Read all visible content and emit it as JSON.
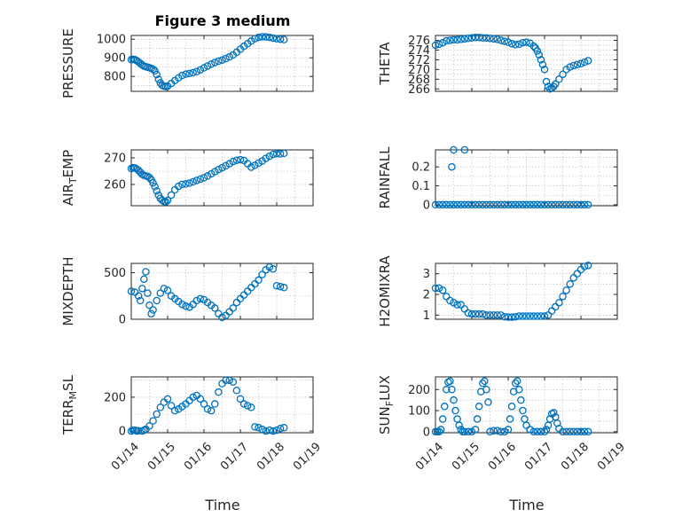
{
  "figure": {
    "title": "Figure 3 medium",
    "xlabel": "Time"
  },
  "colors": {
    "marker": "#0072BD",
    "axis": "#262626",
    "grid": "#b8b8b8"
  },
  "chart_data": [
    {
      "type": "scatter",
      "name": "pressure",
      "ylabel": "PRESSURE",
      "ylabel_sub": "",
      "ylabel_suffix": "",
      "xlim": [
        0,
        5
      ],
      "ylim": [
        720,
        1020
      ],
      "yticks": [
        800,
        900,
        1000
      ],
      "show_x_ticklabels": false,
      "grid": true,
      "x": [
        0.0,
        0.05,
        0.1,
        0.15,
        0.2,
        0.25,
        0.3,
        0.35,
        0.4,
        0.45,
        0.5,
        0.55,
        0.6,
        0.65,
        0.7,
        0.75,
        0.8,
        0.85,
        0.9,
        0.95,
        1.0,
        1.1,
        1.2,
        1.3,
        1.4,
        1.5,
        1.6,
        1.7,
        1.8,
        1.9,
        2.0,
        2.1,
        2.2,
        2.3,
        2.4,
        2.5,
        2.6,
        2.7,
        2.8,
        2.9,
        3.0,
        3.1,
        3.2,
        3.3,
        3.4,
        3.5,
        3.6,
        3.7,
        3.8,
        3.9,
        4.0,
        4.1,
        4.2
      ],
      "y": [
        890,
        892,
        890,
        885,
        878,
        870,
        862,
        855,
        852,
        850,
        847,
        843,
        838,
        830,
        810,
        785,
        765,
        752,
        748,
        745,
        748,
        762,
        778,
        792,
        805,
        812,
        816,
        820,
        826,
        835,
        846,
        856,
        866,
        875,
        882,
        888,
        896,
        905,
        915,
        930,
        946,
        962,
        976,
        990,
        1003,
        1010,
        1013,
        1012,
        1010,
        1006,
        1003,
        1000,
        998
      ]
    },
    {
      "type": "scatter",
      "name": "theta",
      "ylabel": "THETA",
      "ylabel_sub": "",
      "ylabel_suffix": "",
      "xlim": [
        0,
        5
      ],
      "ylim": [
        265.5,
        277
      ],
      "yticks": [
        266,
        268,
        270,
        272,
        274,
        276
      ],
      "show_x_ticklabels": false,
      "grid": true,
      "x": [
        0.0,
        0.1,
        0.2,
        0.3,
        0.4,
        0.5,
        0.6,
        0.7,
        0.8,
        0.9,
        1.0,
        1.1,
        1.2,
        1.3,
        1.4,
        1.5,
        1.6,
        1.7,
        1.8,
        1.9,
        2.0,
        2.1,
        2.2,
        2.3,
        2.4,
        2.5,
        2.6,
        2.7,
        2.75,
        2.8,
        2.85,
        2.9,
        2.95,
        3.0,
        3.05,
        3.1,
        3.15,
        3.2,
        3.25,
        3.3,
        3.4,
        3.5,
        3.6,
        3.7,
        3.8,
        3.9,
        4.0,
        4.1,
        4.2
      ],
      "y": [
        275.0,
        275.2,
        275.5,
        275.9,
        276.0,
        276.1,
        276.1,
        276.2,
        276.3,
        276.4,
        276.5,
        276.6,
        276.6,
        276.5,
        276.5,
        276.4,
        276.3,
        276.2,
        276.0,
        275.8,
        275.6,
        275.3,
        275.1,
        275.2,
        275.5,
        275.6,
        275.4,
        274.8,
        274.4,
        273.8,
        273.0,
        272.0,
        271.0,
        270.0,
        267.5,
        266.5,
        266.0,
        266.2,
        266.5,
        267.0,
        268.0,
        269.0,
        270.0,
        270.5,
        270.8,
        271.0,
        271.2,
        271.5,
        271.8
      ]
    },
    {
      "type": "scatter",
      "name": "air-temp",
      "ylabel": "AIR",
      "ylabel_sub": "T",
      "ylabel_suffix": "EMP",
      "xlim": [
        0,
        5
      ],
      "ylim": [
        252,
        273
      ],
      "yticks": [
        260,
        270
      ],
      "show_x_ticklabels": false,
      "grid": true,
      "x": [
        0.0,
        0.05,
        0.1,
        0.15,
        0.2,
        0.25,
        0.3,
        0.35,
        0.4,
        0.45,
        0.5,
        0.55,
        0.6,
        0.65,
        0.7,
        0.75,
        0.8,
        0.85,
        0.9,
        0.95,
        1.0,
        1.1,
        1.2,
        1.3,
        1.4,
        1.5,
        1.6,
        1.7,
        1.8,
        1.9,
        2.0,
        2.1,
        2.2,
        2.3,
        2.4,
        2.5,
        2.6,
        2.7,
        2.8,
        2.9,
        3.0,
        3.1,
        3.2,
        3.3,
        3.4,
        3.5,
        3.6,
        3.7,
        3.8,
        3.9,
        4.0,
        4.1,
        4.2
      ],
      "y": [
        266.0,
        266.3,
        266.2,
        265.8,
        265.3,
        264.6,
        263.8,
        263.4,
        263.2,
        263.0,
        262.6,
        261.8,
        260.6,
        259.2,
        257.6,
        256.0,
        254.8,
        254.0,
        253.6,
        253.5,
        254.0,
        256.0,
        258.0,
        259.3,
        260.0,
        260.2,
        260.5,
        261.0,
        261.5,
        262.0,
        262.5,
        263.2,
        264.0,
        264.8,
        265.6,
        266.3,
        267.0,
        267.8,
        268.6,
        269.1,
        269.3,
        269.0,
        267.8,
        266.5,
        267.2,
        268.0,
        268.8,
        269.8,
        270.6,
        271.3,
        271.6,
        271.5,
        271.7
      ]
    },
    {
      "type": "scatter",
      "name": "rainfall",
      "ylabel": "RAINFALL",
      "ylabel_sub": "",
      "ylabel_suffix": "",
      "xlim": [
        0,
        5
      ],
      "ylim": [
        -0.005,
        0.29
      ],
      "yticks": [
        0,
        0.1,
        0.2
      ],
      "show_x_ticklabels": false,
      "grid": true,
      "x": [
        0.0,
        0.1,
        0.2,
        0.3,
        0.4,
        0.5,
        0.6,
        0.7,
        0.8,
        0.9,
        1.0,
        1.1,
        1.2,
        1.3,
        1.4,
        1.5,
        1.6,
        1.7,
        1.8,
        1.9,
        2.0,
        2.1,
        2.2,
        2.3,
        2.4,
        2.5,
        2.6,
        2.7,
        2.8,
        2.9,
        3.0,
        3.1,
        3.2,
        3.3,
        3.4,
        3.5,
        3.6,
        3.7,
        3.8,
        3.9,
        4.0,
        4.1,
        4.2,
        0.45,
        0.5,
        0.8
      ],
      "y": [
        0,
        0,
        0,
        0,
        0,
        0,
        0,
        0,
        0,
        0,
        0,
        0,
        0,
        0,
        0,
        0,
        0,
        0,
        0,
        0,
        0,
        0,
        0,
        0,
        0,
        0,
        0,
        0,
        0,
        0,
        0,
        0,
        0,
        0,
        0,
        0,
        0,
        0,
        0,
        0,
        0,
        0,
        0,
        0.2,
        0.29,
        0.29
      ]
    },
    {
      "type": "scatter",
      "name": "mixdepth",
      "ylabel": "MIXDEPTH",
      "ylabel_sub": "",
      "ylabel_suffix": "",
      "xlim": [
        0,
        5
      ],
      "ylim": [
        0,
        600
      ],
      "yticks": [
        0,
        500
      ],
      "show_x_ticklabels": false,
      "grid": true,
      "x": [
        0.0,
        0.1,
        0.2,
        0.25,
        0.3,
        0.35,
        0.4,
        0.45,
        0.5,
        0.55,
        0.6,
        0.7,
        0.8,
        0.9,
        1.0,
        1.1,
        1.2,
        1.3,
        1.4,
        1.5,
        1.6,
        1.7,
        1.8,
        1.9,
        2.0,
        2.1,
        2.2,
        2.3,
        2.4,
        2.5,
        2.6,
        2.7,
        2.8,
        2.9,
        3.0,
        3.1,
        3.2,
        3.3,
        3.4,
        3.5,
        3.6,
        3.7,
        3.8,
        3.9,
        4.0,
        4.1,
        4.2
      ],
      "y": [
        300,
        290,
        250,
        200,
        330,
        430,
        510,
        280,
        150,
        60,
        100,
        200,
        280,
        330,
        310,
        250,
        220,
        190,
        160,
        140,
        130,
        160,
        200,
        220,
        210,
        180,
        150,
        120,
        60,
        20,
        40,
        80,
        120,
        180,
        220,
        260,
        300,
        340,
        380,
        420,
        480,
        530,
        560,
        540,
        360,
        350,
        340
      ]
    },
    {
      "type": "scatter",
      "name": "h2omixra",
      "ylabel": "H2OMIXRA",
      "ylabel_sub": "",
      "ylabel_suffix": "",
      "xlim": [
        0,
        5
      ],
      "ylim": [
        0.8,
        3.5
      ],
      "yticks": [
        1,
        2,
        3
      ],
      "show_x_ticklabels": false,
      "grid": true,
      "x": [
        0.0,
        0.1,
        0.2,
        0.3,
        0.4,
        0.5,
        0.6,
        0.7,
        0.8,
        0.9,
        1.0,
        1.1,
        1.2,
        1.3,
        1.4,
        1.5,
        1.6,
        1.7,
        1.8,
        1.9,
        2.0,
        2.1,
        2.2,
        2.3,
        2.4,
        2.5,
        2.6,
        2.7,
        2.8,
        2.9,
        3.0,
        3.1,
        3.2,
        3.3,
        3.4,
        3.5,
        3.6,
        3.7,
        3.8,
        3.9,
        4.0,
        4.1,
        4.2
      ],
      "y": [
        2.3,
        2.3,
        2.2,
        1.9,
        1.7,
        1.6,
        1.5,
        1.5,
        1.3,
        1.1,
        1.05,
        1.05,
        1.05,
        1.05,
        1.0,
        1.0,
        1.0,
        1.0,
        1.0,
        0.92,
        0.9,
        0.9,
        0.92,
        0.95,
        0.95,
        0.95,
        0.95,
        0.95,
        0.95,
        0.95,
        0.95,
        1.0,
        1.2,
        1.4,
        1.6,
        1.9,
        2.2,
        2.5,
        2.8,
        3.0,
        3.2,
        3.35,
        3.4
      ]
    },
    {
      "type": "scatter",
      "name": "terr-msl",
      "ylabel": "TERR",
      "ylabel_sub": "M",
      "ylabel_suffix": "SL",
      "xlim": [
        0,
        5
      ],
      "ylim": [
        -10,
        320
      ],
      "yticks": [
        0,
        200
      ],
      "show_x_ticklabels": true,
      "xticks": [
        0,
        1,
        2,
        3,
        4,
        5
      ],
      "xticklabels": [
        "01/14",
        "01/15",
        "01/16",
        "01/17",
        "01/18",
        "01/19"
      ],
      "grid": true,
      "x": [
        0.0,
        0.05,
        0.1,
        0.15,
        0.2,
        0.3,
        0.35,
        0.4,
        0.5,
        0.6,
        0.7,
        0.8,
        0.9,
        1.0,
        1.1,
        1.2,
        1.3,
        1.4,
        1.5,
        1.6,
        1.7,
        1.8,
        1.9,
        2.0,
        2.1,
        2.2,
        2.3,
        2.4,
        2.5,
        2.6,
        2.7,
        2.8,
        2.9,
        3.0,
        3.1,
        3.2,
        3.3,
        3.4,
        3.5,
        3.6,
        3.7,
        3.8,
        3.9,
        4.0,
        4.1,
        4.2
      ],
      "y": [
        0,
        5,
        5,
        0,
        2,
        0,
        5,
        10,
        30,
        60,
        100,
        140,
        170,
        190,
        150,
        120,
        130,
        145,
        160,
        180,
        200,
        210,
        190,
        160,
        130,
        120,
        160,
        230,
        280,
        300,
        300,
        290,
        240,
        190,
        160,
        150,
        140,
        25,
        20,
        10,
        0,
        5,
        0,
        5,
        15,
        20
      ]
    },
    {
      "type": "scatter",
      "name": "sun-flux",
      "ylabel": "SUN",
      "ylabel_sub": "F",
      "ylabel_suffix": "LUX",
      "xlim": [
        0,
        5
      ],
      "ylim": [
        -5,
        260
      ],
      "yticks": [
        0,
        100,
        200
      ],
      "show_x_ticklabels": true,
      "xticks": [
        0,
        1,
        2,
        3,
        4,
        5
      ],
      "xticklabels": [
        "01/14",
        "01/15",
        "01/16",
        "01/17",
        "01/18",
        "01/19"
      ],
      "grid": true,
      "x": [
        0.0,
        0.05,
        0.1,
        0.15,
        0.2,
        0.25,
        0.3,
        0.35,
        0.4,
        0.45,
        0.5,
        0.55,
        0.6,
        0.65,
        0.7,
        0.75,
        0.8,
        0.9,
        1.0,
        1.1,
        1.15,
        1.2,
        1.25,
        1.3,
        1.35,
        1.4,
        1.45,
        1.5,
        1.6,
        1.7,
        1.8,
        1.9,
        2.0,
        2.05,
        2.1,
        2.15,
        2.2,
        2.25,
        2.3,
        2.35,
        2.4,
        2.45,
        2.5,
        2.6,
        2.7,
        2.8,
        2.9,
        3.0,
        3.05,
        3.1,
        3.15,
        3.2,
        3.25,
        3.3,
        3.35,
        3.4,
        3.5,
        3.6,
        3.7,
        3.8,
        3.9,
        4.0,
        4.1,
        4.2
      ],
      "y": [
        0,
        0,
        0,
        10,
        60,
        120,
        200,
        235,
        240,
        200,
        150,
        100,
        60,
        30,
        10,
        0,
        0,
        0,
        0,
        10,
        60,
        120,
        190,
        230,
        240,
        200,
        140,
        0,
        5,
        5,
        0,
        0,
        10,
        60,
        120,
        190,
        230,
        240,
        200,
        150,
        100,
        60,
        30,
        10,
        0,
        0,
        0,
        0,
        10,
        30,
        60,
        85,
        90,
        70,
        40,
        15,
        0,
        0,
        0,
        0,
        0,
        0,
        0,
        0
      ]
    }
  ]
}
